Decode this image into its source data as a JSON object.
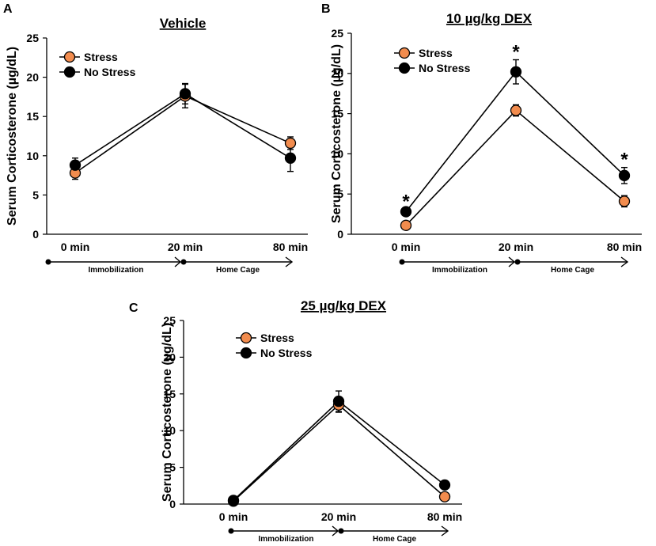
{
  "chart_data": [
    {
      "type": "line",
      "panel_label": "A",
      "title": "Vehicle",
      "ylabel": "Serum Corticosterone (µg/dL)",
      "ylim": [
        0,
        25
      ],
      "yticks": [
        "0",
        "5",
        "10",
        "15",
        "20",
        "25"
      ],
      "categories": [
        "0 min",
        "20 min",
        "80 min"
      ],
      "phases": [
        "Immobilization",
        "Home Cage"
      ],
      "series": [
        {
          "name": "Stress",
          "color": "#f28c4e",
          "values": [
            7.8,
            17.6,
            11.6
          ],
          "errors": [
            0.8,
            1.5,
            0.8
          ]
        },
        {
          "name": "No Stress",
          "color": "#000000",
          "values": [
            8.8,
            17.9,
            9.7
          ],
          "errors": [
            0.9,
            1.3,
            1.7
          ]
        }
      ],
      "significance": [
        "",
        "",
        ""
      ]
    },
    {
      "type": "line",
      "panel_label": "B",
      "title": "10 µg/kg DEX",
      "ylabel": "Serum Corticosterone (µg/dL)",
      "ylim": [
        0,
        25
      ],
      "yticks": [
        "0",
        "5",
        "10",
        "15",
        "20",
        "25"
      ],
      "categories": [
        "0 min",
        "20 min",
        "80 min"
      ],
      "phases": [
        "Immobilization",
        "Home Cage"
      ],
      "series": [
        {
          "name": "Stress",
          "color": "#f28c4e",
          "values": [
            1.1,
            15.4,
            4.1
          ],
          "errors": [
            0.3,
            0.7,
            0.7
          ]
        },
        {
          "name": "No Stress",
          "color": "#000000",
          "values": [
            2.8,
            20.2,
            7.3
          ],
          "errors": [
            0.3,
            1.5,
            1.0
          ]
        }
      ],
      "significance": [
        "*",
        "*",
        "*"
      ]
    },
    {
      "type": "line",
      "panel_label": "C",
      "title": "25 µg/kg DEX",
      "ylabel": "Serum Corticosterone (µg/dL)",
      "ylim": [
        0,
        25
      ],
      "yticks": [
        "0",
        "5",
        "10",
        "15",
        "20",
        "25"
      ],
      "categories": [
        "0 min",
        "20 min",
        "80 min"
      ],
      "phases": [
        "Immobilization",
        "Home Cage"
      ],
      "series": [
        {
          "name": "Stress",
          "color": "#f28c4e",
          "values": [
            0.4,
            13.5,
            1.0
          ],
          "errors": [
            0.2,
            1.0,
            0.2
          ]
        },
        {
          "name": "No Stress",
          "color": "#000000",
          "values": [
            0.5,
            14.0,
            2.6
          ],
          "errors": [
            0.2,
            1.4,
            0.3
          ]
        }
      ],
      "significance": [
        "",
        "",
        ""
      ]
    }
  ]
}
